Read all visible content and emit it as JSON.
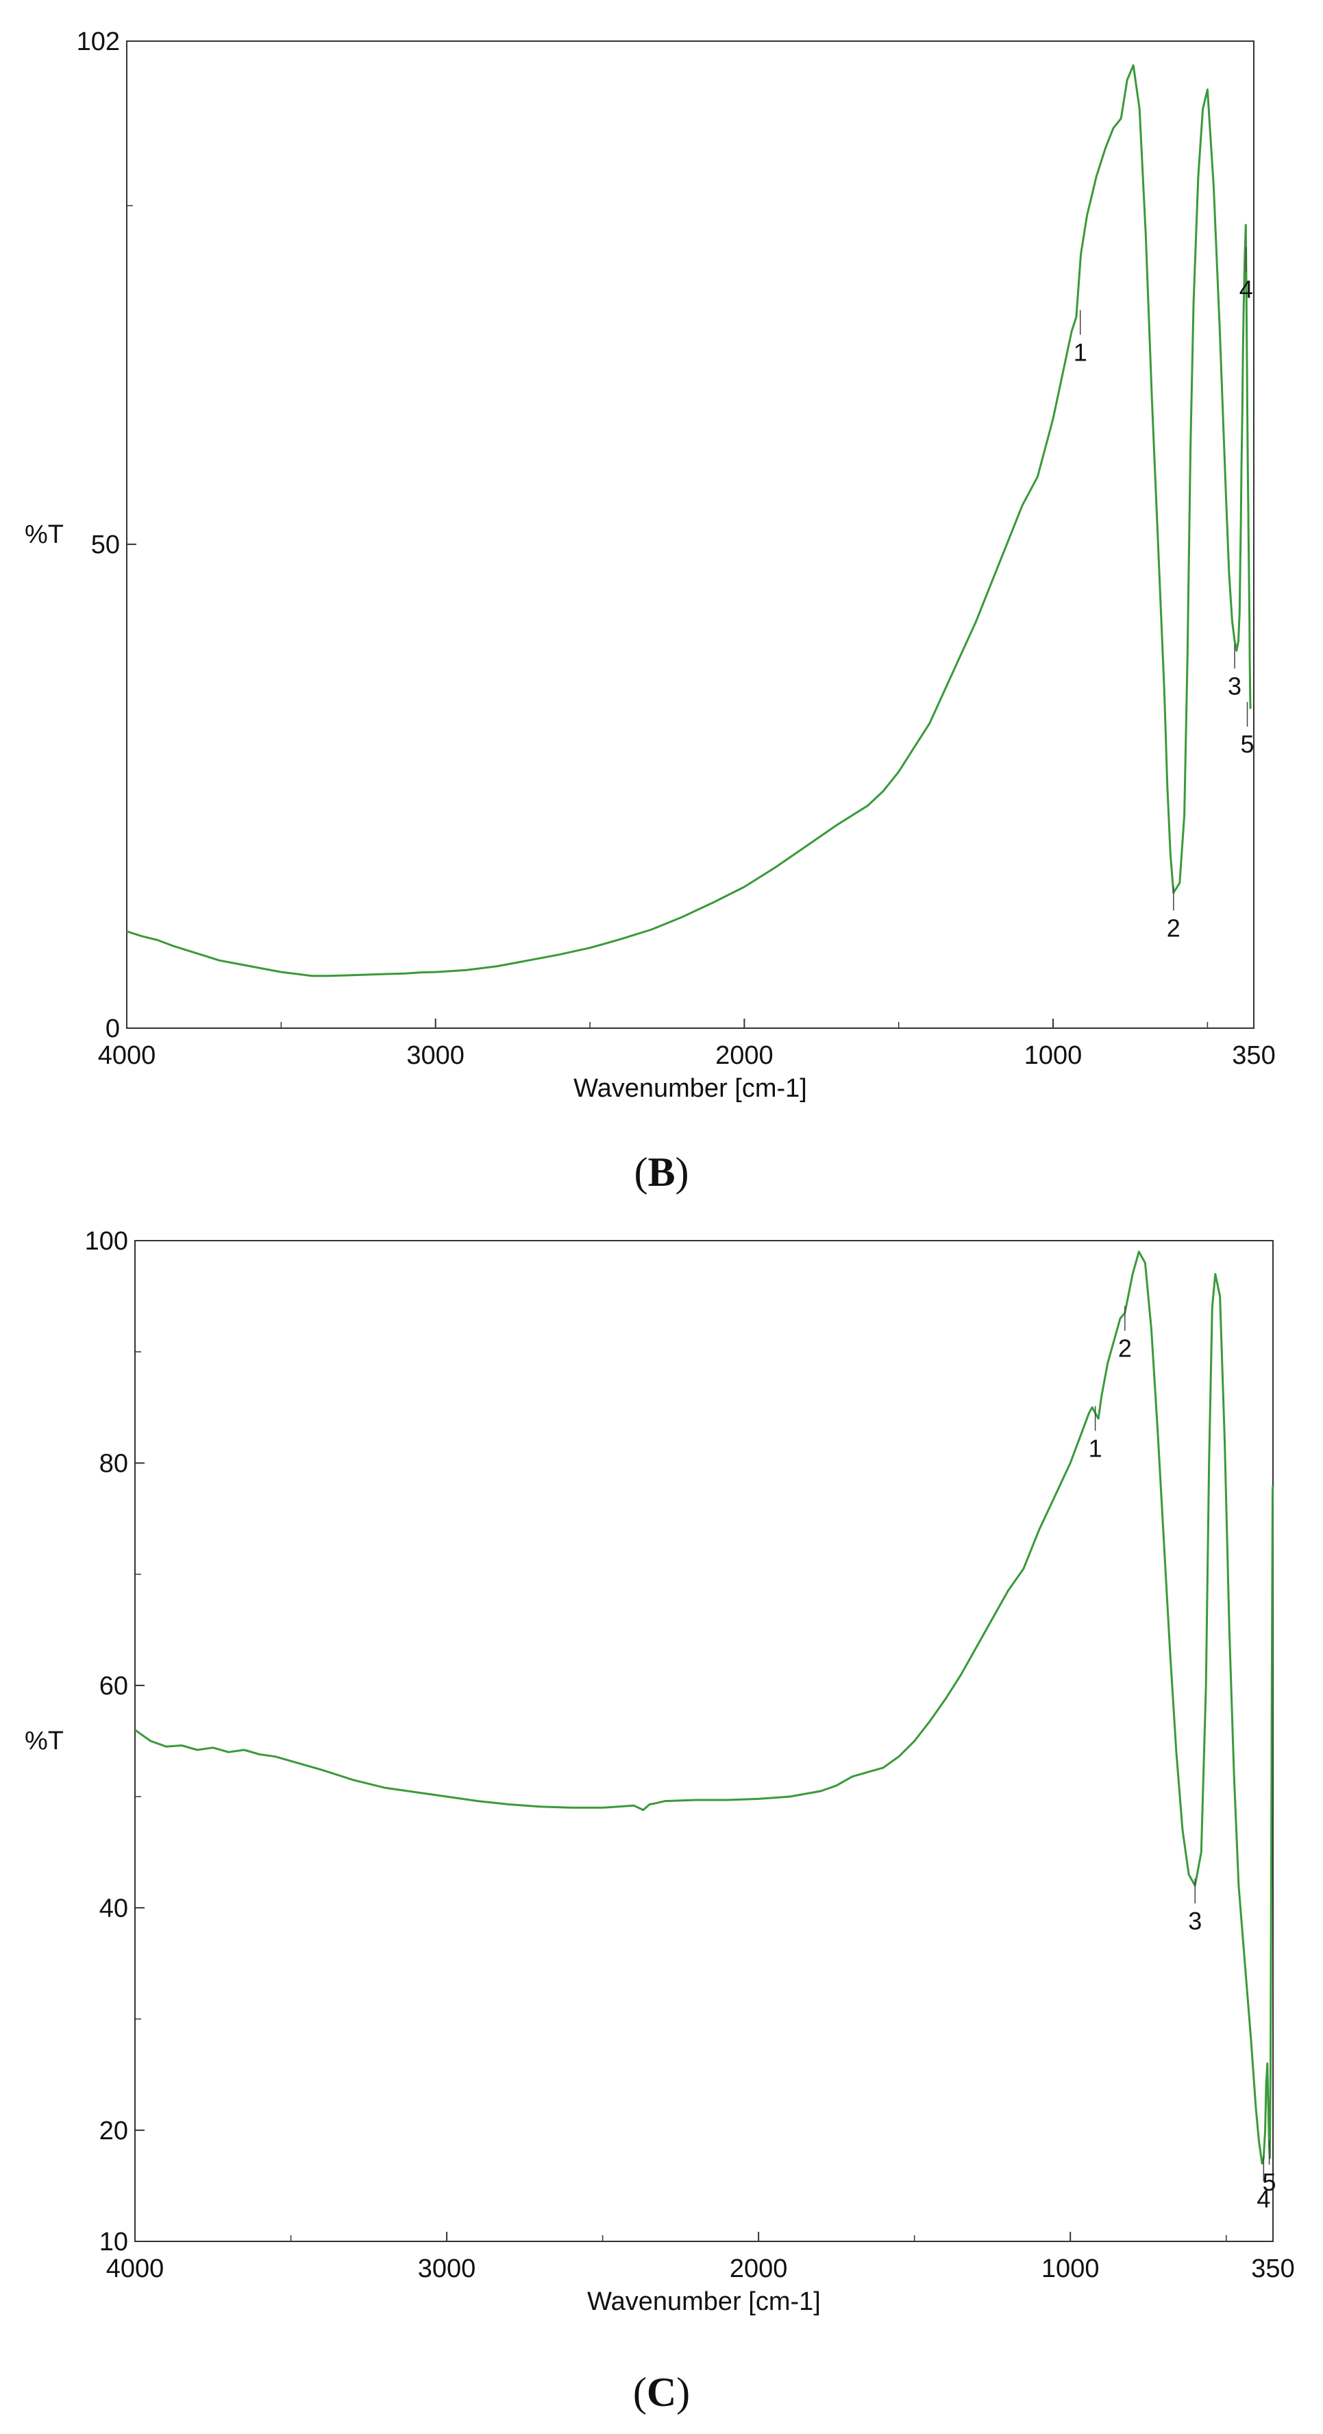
{
  "chart_data": [
    {
      "panel_label": "B",
      "type": "line",
      "xlabel": "Wavenumber [cm-1]",
      "ylabel": "%T",
      "xlim": [
        4000,
        350
      ],
      "ylim": [
        0,
        102
      ],
      "x_reversed": true,
      "x_ticks": [
        4000,
        3000,
        2000,
        1000,
        350
      ],
      "y_ticks": [
        0,
        50,
        102
      ],
      "grid": false,
      "line_color": "#3a9a3a",
      "series": [
        {
          "x": [
            4000,
            3950,
            3900,
            3850,
            3800,
            3750,
            3700,
            3650,
            3600,
            3550,
            3500,
            3450,
            3400,
            3350,
            3300,
            3250,
            3200,
            3150,
            3100,
            3050,
            3000,
            2950,
            2900,
            2800,
            2700,
            2600,
            2500,
            2400,
            2300,
            2200,
            2100,
            2000,
            1900,
            1800,
            1700,
            1650,
            1600,
            1550,
            1500,
            1450,
            1400,
            1350,
            1300,
            1250,
            1200,
            1150,
            1100,
            1050,
            1000,
            960,
            940,
            925,
            910,
            890,
            860,
            830,
            805,
            780,
            760,
            740,
            720,
            700,
            680,
            660,
            640,
            630,
            620,
            610,
            590,
            575,
            565,
            555,
            545,
            530,
            515,
            500,
            480,
            460,
            440,
            430,
            420,
            412,
            406,
            400,
            396,
            394,
            392,
            390,
            387,
            385,
            383,
            381,
            380,
            379,
            378,
            377,
            376,
            375,
            374,
            373,
            372,
            371,
            370,
            369,
            368,
            367,
            366,
            365,
            364,
            363,
            362,
            361
          ],
          "y": [
            10,
            9.5,
            9.1,
            8.5,
            8.0,
            7.5,
            7.0,
            6.7,
            6.4,
            6.1,
            5.8,
            5.6,
            5.4,
            5.4,
            5.45,
            5.5,
            5.55,
            5.6,
            5.65,
            5.75,
            5.8,
            5.9,
            6.0,
            6.4,
            7.0,
            7.6,
            8.3,
            9.2,
            10.2,
            11.5,
            13.0,
            14.6,
            16.6,
            18.8,
            21.0,
            22.0,
            23.0,
            24.5,
            26.5,
            29.0,
            31.5,
            35.0,
            38.5,
            42.0,
            46.0,
            50.0,
            54.0,
            57.0,
            63.0,
            69.0,
            72.0,
            73.5,
            80,
            84,
            88,
            91,
            93,
            94,
            98,
            99.5,
            95,
            82,
            65,
            50,
            35,
            25,
            18,
            14,
            15,
            22,
            38,
            60,
            75,
            88,
            95,
            97,
            87,
            72,
            55,
            47,
            42,
            40,
            39,
            40,
            43,
            48,
            52,
            58,
            64,
            70,
            74,
            77,
            79,
            80,
            81,
            82,
            83,
            80,
            76,
            72,
            68,
            64,
            60,
            57,
            54,
            51,
            48,
            45,
            42,
            38,
            35,
            33
          ]
        }
      ],
      "peaks": [
        {
          "label": "1",
          "x": 912,
          "y": 73.5
        },
        {
          "label": "2",
          "x": 610,
          "y": 14
        },
        {
          "label": "3",
          "x": 412,
          "y": 39
        },
        {
          "label": "4",
          "x": 375,
          "y": 80
        },
        {
          "label": "5",
          "x": 371,
          "y": 33
        }
      ]
    },
    {
      "panel_label": "C",
      "type": "line",
      "xlabel": "Wavenumber [cm-1]",
      "ylabel": "%T",
      "xlim": [
        4000,
        350
      ],
      "ylim": [
        10,
        100
      ],
      "x_reversed": true,
      "x_ticks": [
        4000,
        3000,
        2000,
        1000,
        350
      ],
      "y_ticks": [
        10,
        20,
        40,
        60,
        80,
        100
      ],
      "grid": false,
      "line_color": "#3a9a3a",
      "series": [
        {
          "x": [
            4000,
            3950,
            3900,
            3850,
            3800,
            3750,
            3700,
            3650,
            3600,
            3550,
            3500,
            3400,
            3300,
            3200,
            3100,
            3000,
            2900,
            2800,
            2700,
            2600,
            2500,
            2450,
            2400,
            2370,
            2350,
            2330,
            2300,
            2200,
            2100,
            2000,
            1900,
            1800,
            1750,
            1700,
            1650,
            1600,
            1550,
            1500,
            1450,
            1400,
            1350,
            1300,
            1250,
            1200,
            1150,
            1100,
            1050,
            1000,
            960,
            940,
            930,
            920,
            910,
            900,
            880,
            860,
            840,
            825,
            800,
            780,
            760,
            740,
            720,
            700,
            680,
            660,
            640,
            620,
            600,
            580,
            565,
            555,
            545,
            535,
            520,
            505,
            490,
            475,
            460,
            440,
            420,
            405,
            395,
            385,
            380,
            375,
            372,
            368,
            365,
            362,
            360,
            358,
            356,
            354,
            352,
            351,
            350
          ],
          "y": [
            56,
            55,
            54.5,
            54.6,
            54.2,
            54.4,
            54.0,
            54.2,
            53.8,
            53.6,
            53.2,
            52.4,
            51.5,
            50.8,
            50.4,
            50.0,
            49.6,
            49.3,
            49.1,
            49.0,
            49.0,
            49.1,
            49.2,
            48.8,
            49.3,
            49.4,
            49.6,
            49.7,
            49.7,
            49.8,
            50.0,
            50.5,
            51.0,
            51.8,
            52.2,
            52.6,
            53.6,
            55.0,
            56.8,
            58.8,
            61.0,
            63.5,
            66.0,
            68.5,
            70.5,
            74.0,
            77.0,
            80.0,
            83.0,
            84.5,
            85.0,
            84.5,
            84.0,
            86.0,
            89.0,
            91.0,
            93.0,
            93.5,
            97.0,
            99.0,
            98.0,
            92.0,
            83.0,
            73.0,
            63.0,
            54.0,
            47.0,
            43.0,
            42.0,
            45.0,
            60.0,
            80.0,
            94.0,
            97.0,
            95.0,
            82.0,
            65.0,
            52.0,
            42.0,
            35.0,
            28.0,
            22.0,
            19.0,
            17.0,
            17.5,
            20.0,
            24.0,
            26.0,
            22.0,
            18.5,
            17.5,
            25.0,
            40.0,
            58.0,
            72.0,
            77.5,
            78.0
          ]
        }
      ],
      "peaks": [
        {
          "label": "1",
          "x": 920,
          "y": 84.5
        },
        {
          "label": "2",
          "x": 825,
          "y": 93.5
        },
        {
          "label": "3",
          "x": 600,
          "y": 42.0
        },
        {
          "label": "4",
          "x": 380,
          "y": 17.0
        },
        {
          "label": "5",
          "x": 362,
          "y": 18.5
        }
      ]
    }
  ],
  "captions": {
    "b": "B",
    "c": "C"
  }
}
